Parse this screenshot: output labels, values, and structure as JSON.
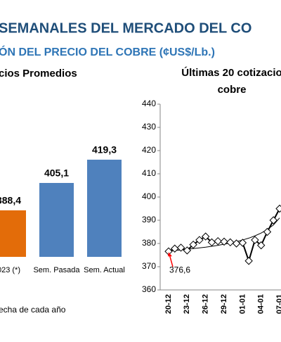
{
  "title": "SEMANALES DEL MERCADO DEL CO",
  "subtitle": "ÓN DEL PRECIO DEL COBRE (¢US$/Lb.)",
  "chart_data": [
    {
      "type": "bar",
      "title": "cios Promedios",
      "categories": [
        "023 (*)",
        "Sem. Pasada",
        "Sem. Actual"
      ],
      "values": [
        388.4,
        405.1,
        419.3
      ],
      "value_labels": [
        "388,4",
        "405,1",
        "419,3"
      ],
      "colors": [
        "#e36c09",
        "#4f81bd",
        "#4f81bd"
      ],
      "ylim": [
        360,
        430
      ],
      "note": "echa de cada año"
    },
    {
      "type": "line",
      "title": [
        "Últimas 20 cotizacio",
        "cobre"
      ],
      "categories": [
        "20-12",
        null,
        null,
        "23-12",
        null,
        null,
        "26-12",
        null,
        null,
        "29-12",
        null,
        null,
        "01-01",
        null,
        null,
        "04-01",
        null,
        null,
        "07-01"
      ],
      "series": [
        {
          "color": "#000000",
          "markers": true,
          "values": [
            376.6,
            377.8,
            378.2,
            377.0,
            379.5,
            381.5,
            383.0,
            380.5,
            381.0,
            380.8,
            380.5,
            380.0,
            380.3,
            372.5,
            381.5,
            379.2,
            385.0,
            390.0,
            395.0
          ],
          "value_labels": [
            "376,6",
            null,
            null,
            null,
            null,
            null,
            null,
            null,
            null,
            null,
            null,
            null,
            null,
            null,
            null,
            null,
            null,
            null,
            null
          ],
          "annotation_color": "#ff0000"
        },
        {
          "color": "#000000",
          "markers": false,
          "values": [
            376.8,
            377.0,
            377.2,
            377.5,
            377.8,
            378.1,
            378.4,
            378.8,
            379.2,
            379.7,
            380.2,
            380.8,
            381.5,
            382.3,
            383.3,
            384.5,
            386.0,
            388.0,
            391.0
          ]
        }
      ],
      "ylim": [
        360,
        440
      ],
      "yticks": [
        360,
        370,
        380,
        390,
        400,
        410,
        420,
        430,
        440
      ]
    }
  ]
}
